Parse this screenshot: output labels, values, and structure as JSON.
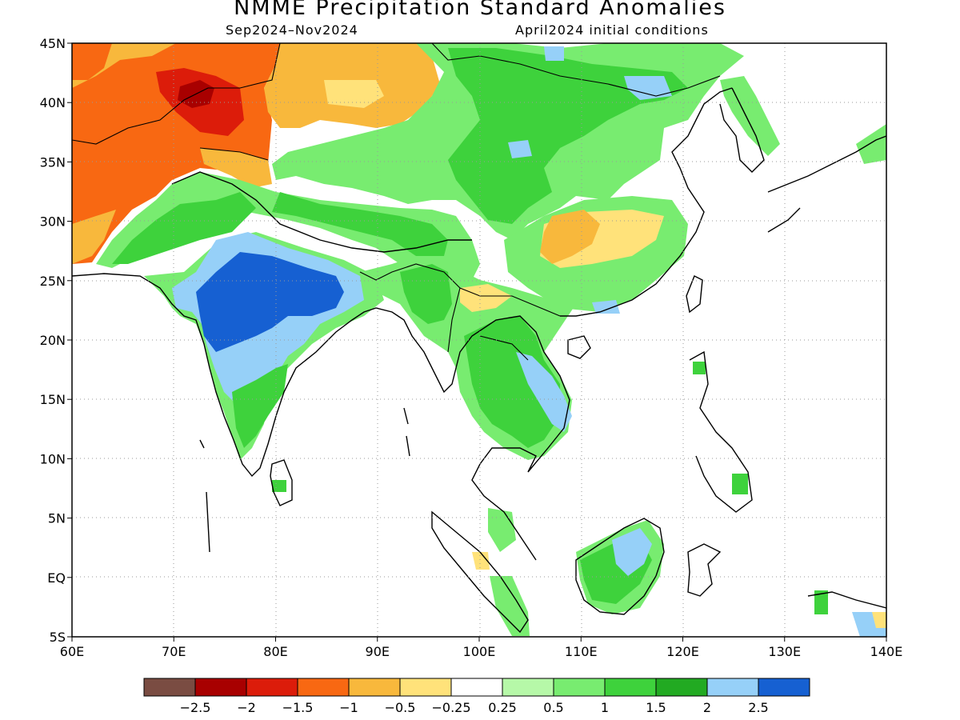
{
  "title": "NMME Precipitation Standard Anomalies",
  "subtitle_left": "Sep2024–Nov2024",
  "subtitle_right": "April2024 initial conditions",
  "map": {
    "lon_range": [
      60,
      140
    ],
    "lat_range": [
      -5,
      45
    ],
    "lon_ticks": [
      "60E",
      "70E",
      "80E",
      "90E",
      "100E",
      "110E",
      "120E",
      "130E",
      "140E"
    ],
    "lat_ticks": [
      "5S",
      "EQ",
      "5N",
      "10N",
      "15N",
      "20N",
      "25N",
      "30N",
      "35N",
      "40N",
      "45N"
    ],
    "grid": "dotted"
  },
  "colorbar": {
    "colors": [
      "#7a4c42",
      "#a80000",
      "#dc1c0a",
      "#f86812",
      "#f8b83c",
      "#ffe27a",
      "#ffffff",
      "#b6f8a8",
      "#78ec70",
      "#3ed23c",
      "#22aa22",
      "#96d0f8",
      "#1660d2"
    ],
    "labels": [
      "−2.5",
      "−2",
      "−1.5",
      "−1",
      "−0.5",
      "−0.25",
      "0.25",
      "0.5",
      "1",
      "1.5",
      "2",
      "2.5"
    ]
  },
  "anomaly_regions": [
    {
      "level": "-1",
      "color": "#f86812",
      "area": "Afghanistan / Pakistan / western China"
    },
    {
      "level": "-1.5",
      "color": "#dc1c0a",
      "area": "western Tarim / Kyrgyzstan"
    },
    {
      "level": "-0.5",
      "color": "#f8b83c",
      "area": "Tarim Basin and southwest of it"
    },
    {
      "level": "-0.5",
      "color": "#f8b83c",
      "area": "southeast China (Hunan/Jiangxi)"
    },
    {
      "level": "1",
      "color": "#78ec70",
      "area": "Tibet, central China, Indochina"
    },
    {
      "level": "1.5",
      "color": "#3ed23c",
      "area": "Qinghai, Gansu, Sichuan, Thailand, Borneo"
    },
    {
      "level": "2",
      "color": "#96d0f8",
      "area": "central India, Borneo"
    },
    {
      "level": "2.5",
      "color": "#1660d2",
      "area": "central India (Madhya Pradesh)"
    }
  ]
}
